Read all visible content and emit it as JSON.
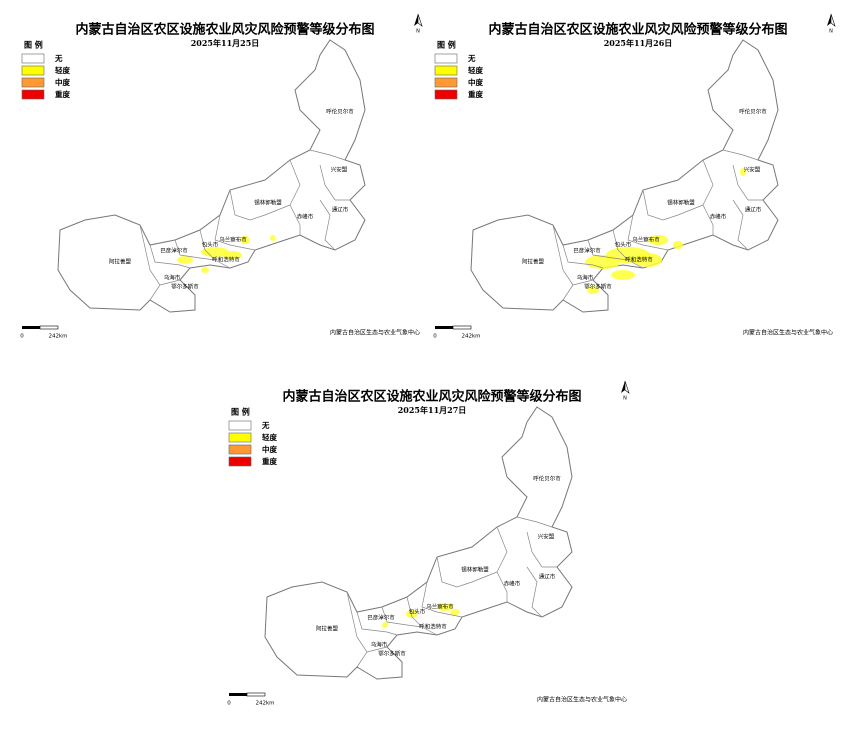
{
  "panels": [
    {
      "title": "内蒙古自治区农区设施农业风灾风险预警等级分布图",
      "date": "2025年11月25日",
      "legend": {
        "title": "图 例",
        "items": [
          {
            "label": "无",
            "color": "#ffffff"
          },
          {
            "label": "轻度",
            "color": "#ffff00"
          },
          {
            "label": "中度",
            "color": "#ff9933"
          },
          {
            "label": "重度",
            "color": "#ee0000"
          }
        ]
      },
      "regions": [
        "呼伦贝尔市",
        "兴安盟",
        "锡林郭勒盟",
        "赤峰市",
        "通辽市",
        "乌兰察布市",
        "包头市",
        "巴彦淖尔市",
        "呼和浩特市",
        "阿拉善盟",
        "乌海市",
        "鄂尔多斯市"
      ],
      "scale_bar": {
        "start": "0",
        "end": "242km"
      },
      "source": "内蒙古自治区生态与农业气象中心",
      "north": "N"
    },
    {
      "title": "内蒙古自治区农区设施农业风灾风险预警等级分布图",
      "date": "2025年11月26日",
      "legend": {
        "title": "图 例",
        "items": [
          {
            "label": "无",
            "color": "#ffffff"
          },
          {
            "label": "轻度",
            "color": "#ffff00"
          },
          {
            "label": "中度",
            "color": "#ff9933"
          },
          {
            "label": "重度",
            "color": "#ee0000"
          }
        ]
      },
      "regions": [
        "呼伦贝尔市",
        "兴安盟",
        "锡林郭勒盟",
        "赤峰市",
        "通辽市",
        "乌兰察布市",
        "包头市",
        "巴彦淖尔市",
        "呼和浩特市",
        "阿拉善盟",
        "乌海市",
        "鄂尔多斯市"
      ],
      "scale_bar": {
        "start": "0",
        "end": "242km"
      },
      "source": "内蒙古自治区生态与农业气象中心",
      "north": "N"
    },
    {
      "title": "内蒙古自治区农区设施农业风灾风险预警等级分布图",
      "date": "2025年11月27日",
      "legend": {
        "title": "图 例",
        "items": [
          {
            "label": "无",
            "color": "#ffffff"
          },
          {
            "label": "轻度",
            "color": "#ffff00"
          },
          {
            "label": "中度",
            "color": "#ff9933"
          },
          {
            "label": "重度",
            "color": "#ee0000"
          }
        ]
      },
      "regions": [
        "呼伦贝尔市",
        "兴安盟",
        "锡林郭勒盟",
        "赤峰市",
        "通辽市",
        "乌兰察布市",
        "包头市",
        "巴彦淖尔市",
        "呼和浩特市",
        "阿拉善盟",
        "乌海市",
        "鄂尔多斯市"
      ],
      "scale_bar": {
        "start": "0",
        "end": "242km"
      },
      "source": "内蒙古自治区生态与农业气象中心",
      "north": "N"
    }
  ]
}
